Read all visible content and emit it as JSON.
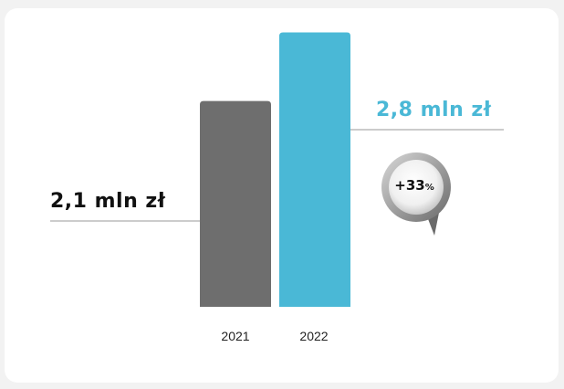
{
  "chart_data": {
    "type": "bar",
    "categories": [
      "2021",
      "2022"
    ],
    "values": [
      2.1,
      2.8
    ],
    "value_labels": [
      "2,1 mln zł",
      "2,8 mln zł"
    ],
    "ylim": [
      0,
      3
    ],
    "grid": false,
    "colors": [
      "#6e6e6e",
      "#4ab8d6"
    ],
    "annotation": {
      "number": "+33",
      "suffix": "%"
    }
  }
}
